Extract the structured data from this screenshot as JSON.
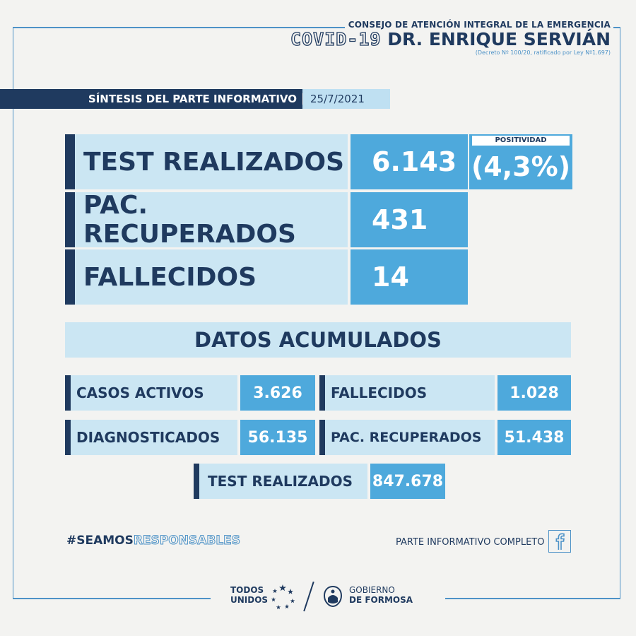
{
  "header": {
    "line1": "CONSEJO DE ATENCIÓN INTEGRAL DE LA EMERGENCIA",
    "covid": "COVID-19",
    "doctor": "DR. ENRIQUE SERVIÁN",
    "decree": "(Decreto Nº 100/20, ratificado por Ley Nº1.697)"
  },
  "band": {
    "title": "SÍNTESIS DEL PARTE INFORMATIVO",
    "date": "25/7/2021"
  },
  "daily": {
    "tests": {
      "label": "TEST REALIZADOS",
      "value": "6.143"
    },
    "recovered": {
      "label": "PAC. RECUPERADOS",
      "value": "431"
    },
    "deaths": {
      "label": "FALLECIDOS",
      "value": "14"
    },
    "positivity": {
      "label": "POSITIVIDAD",
      "value": "(4,3%)"
    }
  },
  "cumulative": {
    "title": "DATOS ACUMULADOS",
    "active": {
      "label": "CASOS ACTIVOS",
      "value": "3.626"
    },
    "deaths": {
      "label": "FALLECIDOS",
      "value": "1.028"
    },
    "diagnosed": {
      "label": "DIAGNOSTICADOS",
      "value": "56.135"
    },
    "recovered": {
      "label": "PAC. RECUPERADOS",
      "value": "51.438"
    },
    "tests": {
      "label": "TEST REALIZADOS",
      "value": "847.678"
    }
  },
  "footer": {
    "hashtag_a": "#SEAMOS",
    "hashtag_b": "RESPONSABLES",
    "full_report": "PARTE INFORMATIVO COMPLETO",
    "todos_1": "TODOS",
    "todos_2": "UNIDOS",
    "gob_1": "GOBIERNO",
    "gob_2": "DE FORMOSA"
  },
  "colors": {
    "dark_navy": "#1f3a5f",
    "light_blue": "#cbe6f3",
    "accent_blue": "#4ea9dc",
    "line_blue": "#4d92c7"
  },
  "icons": [
    "facebook-icon",
    "stars-logo-icon",
    "formosa-seal-icon"
  ]
}
